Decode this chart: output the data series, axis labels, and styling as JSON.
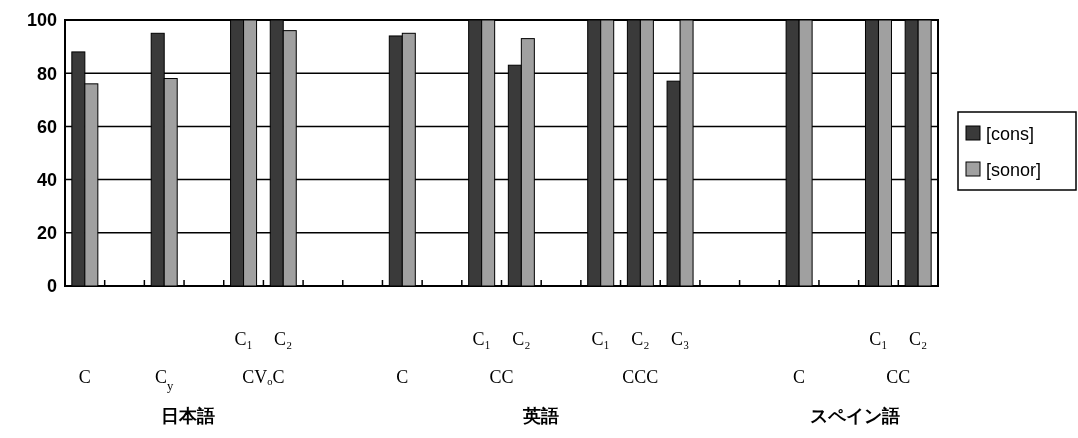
{
  "chart_data": {
    "type": "bar",
    "categories": [
      null,
      null,
      null,
      null,
      "C₁",
      "C₂",
      null,
      null,
      null,
      null,
      "C₁",
      "C₂",
      null,
      "C₁",
      "C₂",
      "C₃",
      null,
      null,
      null,
      null,
      "C₁",
      "C₂"
    ],
    "series": [
      {
        "name": "[cons]",
        "color": "#3a3a3a",
        "values": [
          88,
          null,
          95,
          null,
          100,
          100,
          null,
          null,
          94,
          null,
          100,
          83,
          null,
          100,
          100,
          77,
          null,
          null,
          100,
          null,
          100,
          100
        ]
      },
      {
        "name": "[sonor]",
        "color": "#a0a0a0",
        "values": [
          76,
          null,
          78,
          null,
          100,
          96,
          null,
          null,
          95,
          null,
          100,
          93,
          null,
          100,
          100,
          100,
          null,
          null,
          100,
          null,
          100,
          100
        ]
      }
    ],
    "annotations": [
      "C",
      "C$_{y}$",
      "C",
      "C",
      "CVₒC",
      "CC",
      "CCC",
      "CC",
      "日本語",
      "英語",
      "スペイン語"
    ],
    "ylim": [
      0,
      100
    ],
    "yticks": [
      0,
      20,
      40,
      60,
      80,
      100
    ],
    "grid": "y",
    "legend": "right"
  }
}
